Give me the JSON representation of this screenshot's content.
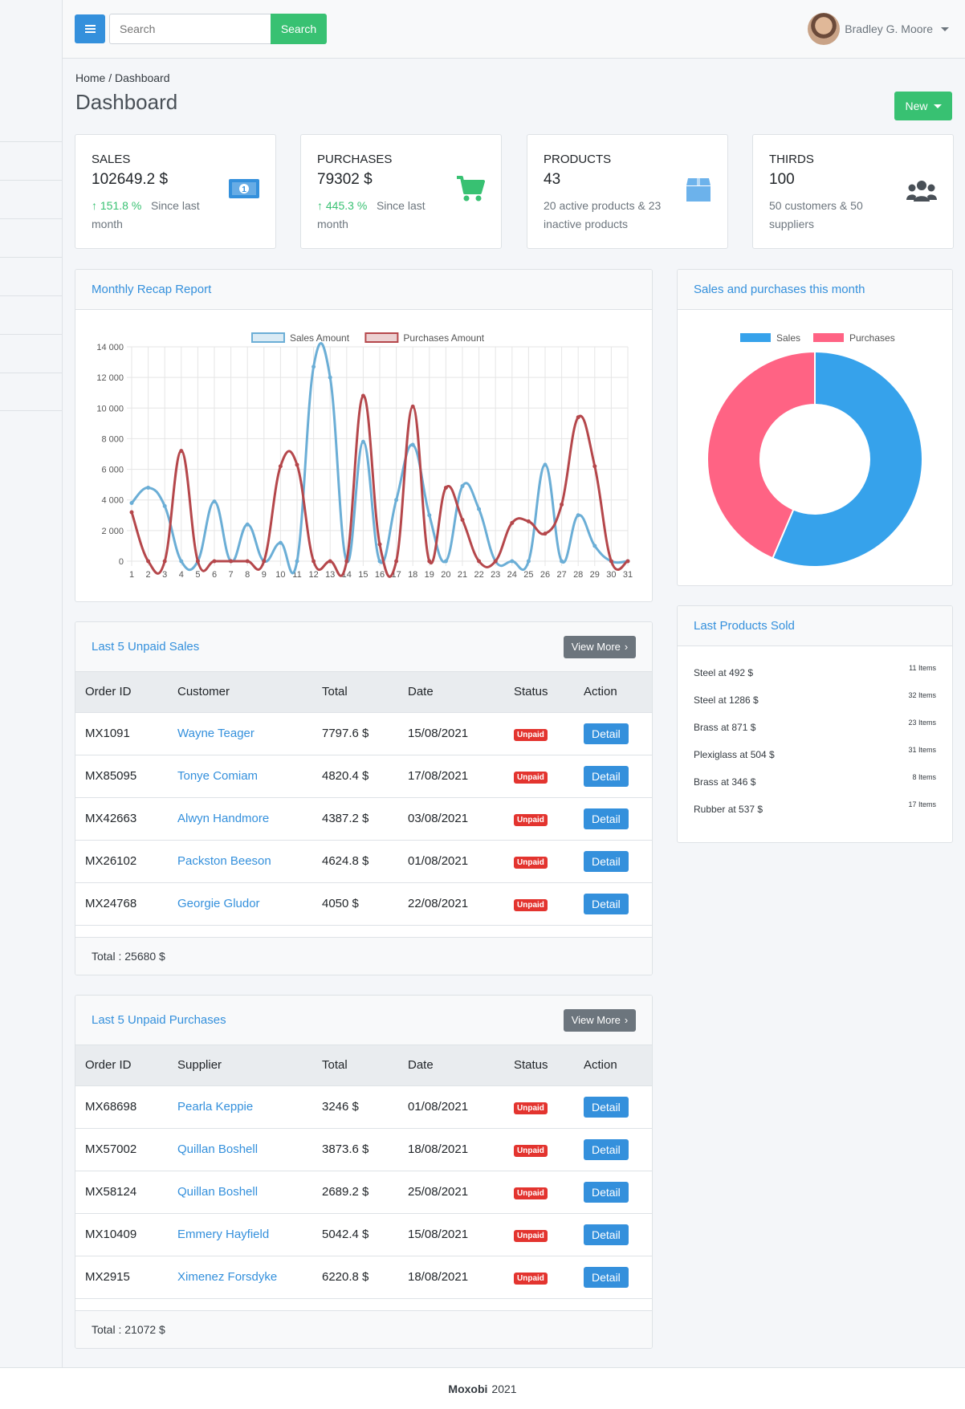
{
  "search": {
    "placeholder": "Search",
    "button": "Search"
  },
  "user": {
    "name": "Bradley G. Moore"
  },
  "breadcrumb": "Home / Dashboard",
  "page_title": "Dashboard",
  "new_button": "New",
  "stats": [
    {
      "label": "SALES",
      "value": "102649.2 $",
      "change": "151.8 %",
      "sub": "Since last month",
      "icon": "money-icon",
      "color": "#3490dc"
    },
    {
      "label": "PURCHASES",
      "value": "79302 $",
      "change": "445.3 %",
      "sub": "Since last month",
      "icon": "cart-icon",
      "color": "#38c172"
    },
    {
      "label": "PRODUCTS",
      "value": "43",
      "sub": "20 active products & 23 inactive products",
      "icon": "box-icon",
      "color": "#6cb2eb"
    },
    {
      "label": "THIRDS",
      "value": "100",
      "sub": "50 customers & 50 suppliers",
      "icon": "users-icon",
      "color": "#495057"
    }
  ],
  "recap": {
    "title": "Monthly Recap Report",
    "chart_data": {
      "type": "line",
      "x": [
        1,
        2,
        3,
        4,
        5,
        6,
        7,
        8,
        9,
        10,
        11,
        12,
        13,
        14,
        15,
        16,
        17,
        18,
        19,
        20,
        21,
        22,
        23,
        24,
        25,
        26,
        27,
        28,
        29,
        30,
        31
      ],
      "ylim": [
        0,
        14000
      ],
      "yticks": [
        "0",
        "2 000",
        "4 000",
        "6 000",
        "8 000",
        "10 000",
        "12 000",
        "14 000"
      ],
      "grid": true,
      "legend": "top",
      "series": [
        {
          "name": "Sales Amount",
          "color": "#6baed6",
          "values": [
            3800,
            4800,
            3600,
            0,
            0,
            3900,
            0,
            2400,
            0,
            1200,
            0,
            12700,
            12000,
            0,
            7800,
            0,
            4000,
            7600,
            3000,
            0,
            4900,
            3400,
            0,
            0,
            0,
            6300,
            0,
            3000,
            1000,
            0,
            0
          ]
        },
        {
          "name": "Purchases Amount",
          "color": "#b5474b",
          "values": [
            3200,
            0,
            0,
            7200,
            0,
            0,
            0,
            0,
            0,
            6200,
            6300,
            0,
            0,
            0,
            10800,
            1100,
            0,
            10100,
            0,
            4800,
            2700,
            0,
            0,
            2500,
            2600,
            1800,
            3700,
            9400,
            6200,
            0,
            0
          ]
        }
      ]
    }
  },
  "month": {
    "title": "Sales and purchases this month",
    "chart_data": {
      "type": "pie",
      "labels": [
        "Sales",
        "Purchases"
      ],
      "values": [
        102649.2,
        79302
      ],
      "colors": [
        "#36a2eb",
        "#ff6384"
      ],
      "legend": "top"
    }
  },
  "sales_table": {
    "title": "Last 5 Unpaid Sales",
    "view_more": "View More",
    "headers": [
      "Order ID",
      "Customer",
      "Total",
      "Date",
      "Status",
      "Action"
    ],
    "rows": [
      [
        "MX1091",
        "Wayne Teager",
        "7797.6 $",
        "15/08/2021"
      ],
      [
        "MX85095",
        "Tonye Comiam",
        "4820.4 $",
        "17/08/2021"
      ],
      [
        "MX42663",
        "Alwyn Handmore",
        "4387.2 $",
        "03/08/2021"
      ],
      [
        "MX26102",
        "Packston Beeson",
        "4624.8 $",
        "01/08/2021"
      ],
      [
        "MX24768",
        "Georgie Gludor",
        "4050 $",
        "22/08/2021"
      ]
    ],
    "status": "Unpaid",
    "action": "Detail",
    "total": "Total : 25680 $"
  },
  "purchases_table": {
    "title": "Last 5 Unpaid Purchases",
    "view_more": "View More",
    "headers": [
      "Order ID",
      "Supplier",
      "Total",
      "Date",
      "Status",
      "Action"
    ],
    "rows": [
      [
        "MX68698",
        "Pearla Keppie",
        "3246 $",
        "01/08/2021"
      ],
      [
        "MX57002",
        "Quillan Boshell",
        "3873.6 $",
        "18/08/2021"
      ],
      [
        "MX58124",
        "Quillan Boshell",
        "2689.2 $",
        "25/08/2021"
      ],
      [
        "MX10409",
        "Emmery Hayfield",
        "5042.4 $",
        "15/08/2021"
      ],
      [
        "MX2915",
        "Ximenez Forsdyke",
        "6220.8 $",
        "18/08/2021"
      ]
    ],
    "status": "Unpaid",
    "action": "Detail",
    "total": "Total : 21072 $"
  },
  "last_products": {
    "title": "Last Products Sold",
    "items": [
      {
        "name": "Steel at 492 $",
        "count": "11 Items"
      },
      {
        "name": "Steel at 1286 $",
        "count": "32 Items"
      },
      {
        "name": "Brass at 871 $",
        "count": "23 Items"
      },
      {
        "name": "Plexiglass at 504 $",
        "count": "31 Items"
      },
      {
        "name": "Brass at 346 $",
        "count": "8 Items"
      },
      {
        "name": "Rubber at 537 $",
        "count": "17 Items"
      }
    ]
  },
  "footer": {
    "brand": "Moxobi",
    "year": "2021"
  }
}
